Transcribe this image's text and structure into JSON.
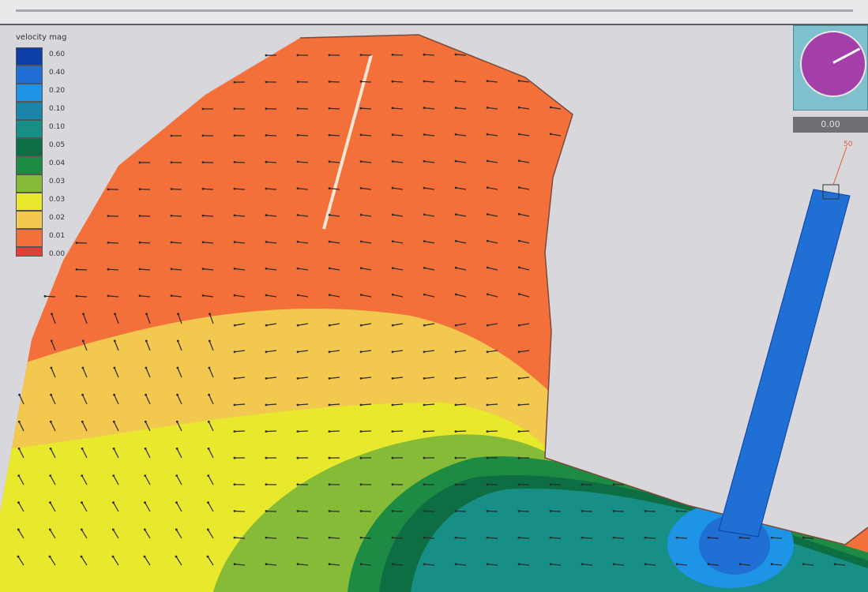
{
  "legend": {
    "title": "velocity mag",
    "items": [
      {
        "label": "0.60",
        "color": "#0b3fa7"
      },
      {
        "label": "0.40",
        "color": "#1f6fd4"
      },
      {
        "label": "0.20",
        "color": "#1e94e6"
      },
      {
        "label": "0.10",
        "color": "#1a86a7"
      },
      {
        "label": "0.10",
        "color": "#178f86"
      },
      {
        "label": "0.05",
        "color": "#0d6e43"
      },
      {
        "label": "0.04",
        "color": "#1d8b43"
      },
      {
        "label": "0.03",
        "color": "#86bb38"
      },
      {
        "label": "0.03",
        "color": "#e8e82c"
      },
      {
        "label": "0.02",
        "color": "#f2c84e"
      },
      {
        "label": "0.01",
        "color": "#f3703a"
      },
      {
        "label": "0.00",
        "color": "#e23f37"
      }
    ]
  },
  "compass": {
    "icon": "compass-dial-icon",
    "dial_color": "#a43ea9",
    "background": "#7ec0cd"
  },
  "time_display": "0.00",
  "probe": {
    "label": "50"
  },
  "colors": {
    "orange": "#f3703a",
    "light_orange": "#f2c84e",
    "yellow": "#e8e82c",
    "light_green": "#86bb38",
    "green": "#1d8b43",
    "dark_teal": "#0d6e43",
    "teal": "#178f86",
    "blue": "#1f6fd4",
    "light_blue": "#1e94e6",
    "background": "#d8d8dc"
  }
}
